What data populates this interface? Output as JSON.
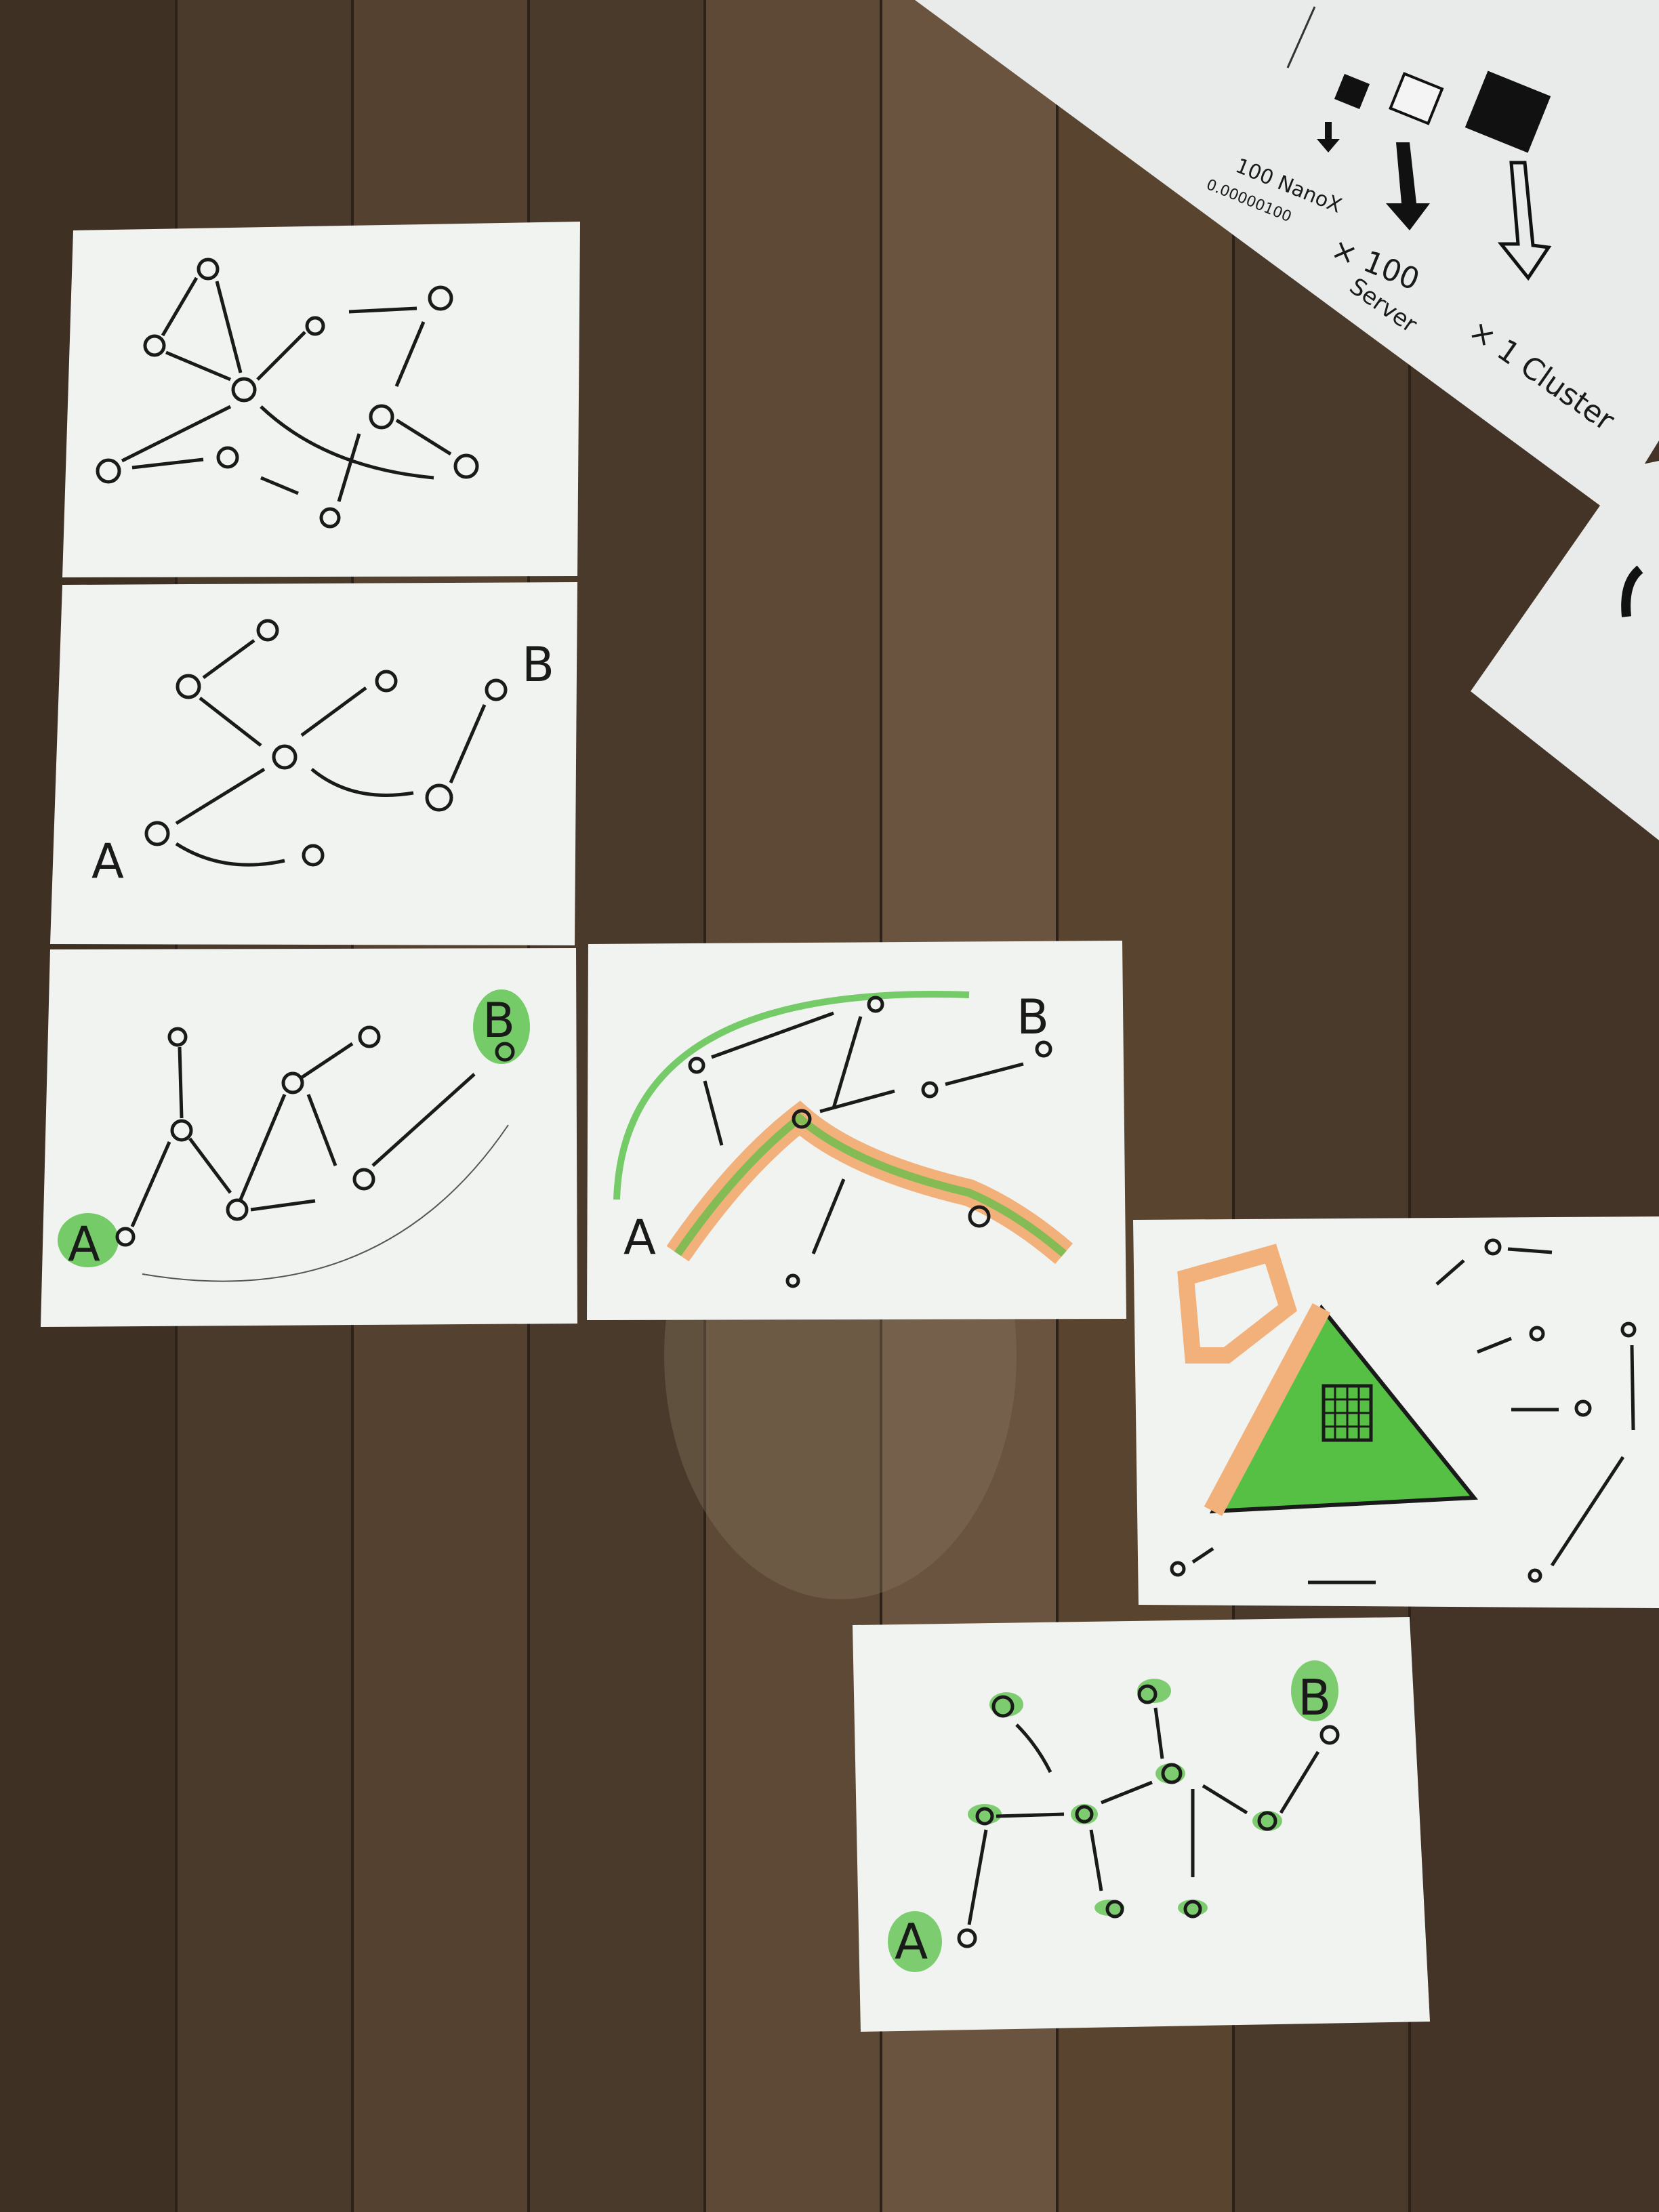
{
  "photo": {
    "floor_color": "#4a3a2c",
    "paper_color": "#f1f3f0",
    "ink_color": "#1a1a1a",
    "highlight_green": "#56c045",
    "highlight_orange": "#f2b07a"
  },
  "cards": [
    {
      "id": "mesh",
      "labels": {}
    },
    {
      "id": "path-ab",
      "labels": {
        "a": "A",
        "b": "B"
      }
    },
    {
      "id": "path-ab-green",
      "labels": {
        "a": "A",
        "b": "B"
      }
    },
    {
      "id": "path-ab-orange",
      "labels": {
        "a": "A",
        "b": "B"
      }
    },
    {
      "id": "triangle",
      "labels": {}
    },
    {
      "id": "path-ab-nodes",
      "labels": {
        "a": "A",
        "b": "B"
      }
    }
  ],
  "top_sheet": {
    "nanox": "100 NanoX",
    "price": "0.00000100",
    "times_100": "× 100",
    "server": "Server",
    "times_1": "× 1 Cluster"
  }
}
